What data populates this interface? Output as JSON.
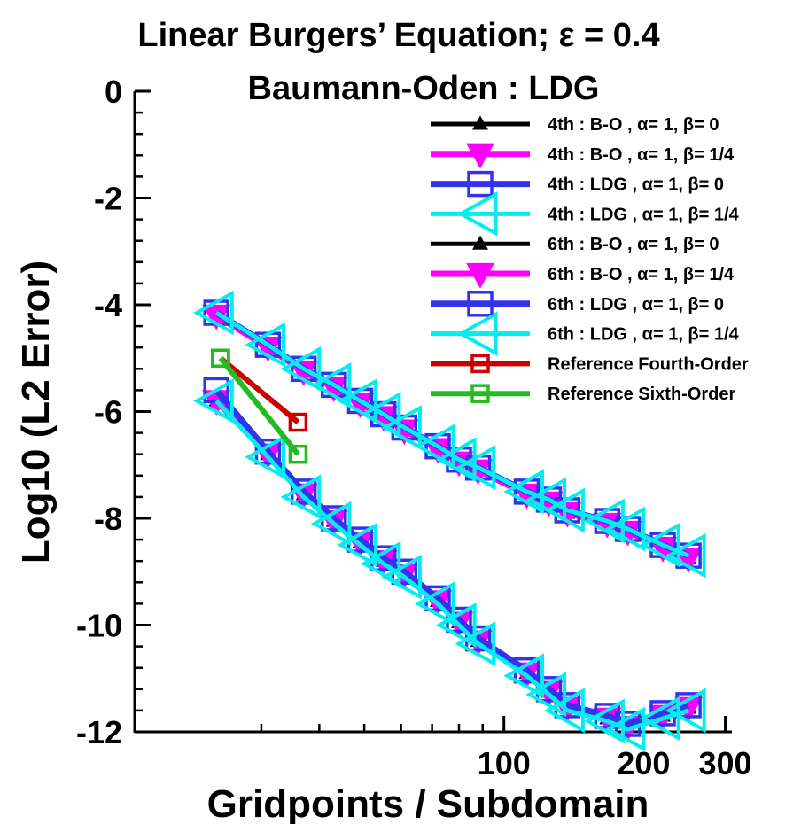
{
  "chart_data": {
    "type": "line",
    "title": "Linear Burgers’ Equation;  ε = 0.4",
    "subtitle": "Baumann-Oden : LDG",
    "xlabel": "Gridpoints / Subdomain",
    "ylabel": "Log10 (L2 Error)",
    "x_scale": "log",
    "xlim": [
      16,
      310
    ],
    "ylim": [
      -12,
      0
    ],
    "x_ticks": [
      {
        "value": 100,
        "label": "100"
      },
      {
        "value": 200,
        "label": "200"
      },
      {
        "value": 300,
        "label": "300"
      }
    ],
    "x_minor_ticks": [
      30,
      40,
      50,
      60,
      70,
      80,
      90
    ],
    "y_ticks": [
      {
        "value": 0,
        "label": "0"
      },
      {
        "value": -2,
        "label": "-2"
      },
      {
        "value": -4,
        "label": "-4"
      },
      {
        "value": -6,
        "label": "-6"
      },
      {
        "value": -8,
        "label": "-8"
      },
      {
        "value": -10,
        "label": "-10"
      },
      {
        "value": -12,
        "label": "-12"
      }
    ],
    "legend_position": "top-right",
    "series": [
      {
        "name": "4th : B-O , α= 1,  β= 0",
        "color": "#000000",
        "marker": "triangle-up",
        "marker_size": 6,
        "line_width": 5,
        "x": [
          24,
          31,
          37,
          43,
          49,
          55,
          61,
          72,
          80,
          88,
          112,
          125,
          137,
          167,
          185,
          220,
          250
        ],
        "y": [
          -4.2,
          -4.8,
          -5.25,
          -5.55,
          -5.85,
          -6.1,
          -6.35,
          -6.7,
          -6.95,
          -7.1,
          -7.55,
          -7.7,
          -7.9,
          -8.1,
          -8.25,
          -8.55,
          -8.75
        ]
      },
      {
        "name": "4th : B-O , α= 1,  β= 1/4",
        "color": "#ff00ff",
        "marker": "triangle-down",
        "marker_size": 13,
        "line_width": 7,
        "x": [
          24,
          31,
          37,
          43,
          49,
          55,
          61,
          72,
          80,
          88,
          112,
          125,
          137,
          167,
          185,
          220,
          250
        ],
        "y": [
          -4.2,
          -4.8,
          -5.25,
          -5.55,
          -5.85,
          -6.1,
          -6.35,
          -6.7,
          -6.95,
          -7.1,
          -7.55,
          -7.7,
          -7.9,
          -8.1,
          -8.25,
          -8.55,
          -8.75
        ]
      },
      {
        "name": "4th : LDG , α= 1,  β= 0",
        "color": "#3333ee",
        "marker": "square",
        "marker_size": 13,
        "line_width": 7,
        "x": [
          24,
          31,
          37,
          43,
          49,
          55,
          61,
          72,
          80,
          88,
          112,
          125,
          137,
          167,
          185,
          220,
          250
        ],
        "y": [
          -4.15,
          -4.75,
          -5.2,
          -5.5,
          -5.8,
          -6.05,
          -6.3,
          -6.65,
          -6.9,
          -7.05,
          -7.5,
          -7.65,
          -7.85,
          -8.05,
          -8.2,
          -8.5,
          -8.7
        ]
      },
      {
        "name": "4th : LDG , α= 1,  β= 1/4",
        "color": "#00eeee",
        "marker": "triangle-left",
        "marker_size": 22,
        "line_width": 5,
        "x": [
          24,
          31,
          37,
          43,
          49,
          55,
          61,
          72,
          80,
          88,
          112,
          125,
          137,
          167,
          185,
          220,
          250
        ],
        "y": [
          -4.15,
          -4.75,
          -5.2,
          -5.5,
          -5.8,
          -6.05,
          -6.3,
          -6.65,
          -6.9,
          -7.05,
          -7.5,
          -7.65,
          -7.85,
          -8.05,
          -8.2,
          -8.5,
          -8.7
        ]
      },
      {
        "name": "6th : B-O , α= 1,  β= 0",
        "color": "#000000",
        "marker": "triangle-up",
        "marker_size": 6,
        "line_width": 5,
        "x": [
          24,
          31,
          37,
          43,
          49,
          55,
          61,
          72,
          80,
          88,
          112,
          125,
          137,
          167,
          185,
          220,
          250
        ],
        "y": [
          -5.8,
          -6.8,
          -7.55,
          -8.05,
          -8.45,
          -8.8,
          -9.05,
          -9.55,
          -9.95,
          -10.3,
          -10.9,
          -11.25,
          -11.55,
          -11.75,
          -11.9,
          -11.7,
          -11.55
        ]
      },
      {
        "name": "6th : B-O , α= 1,  β= 1/4",
        "color": "#ff00ff",
        "marker": "triangle-down",
        "marker_size": 13,
        "line_width": 7,
        "x": [
          24,
          31,
          37,
          43,
          49,
          55,
          61,
          72,
          80,
          88,
          112,
          125,
          137,
          167,
          185,
          220,
          250
        ],
        "y": [
          -5.8,
          -6.8,
          -7.55,
          -8.05,
          -8.45,
          -8.8,
          -9.05,
          -9.55,
          -9.95,
          -10.3,
          -10.9,
          -11.25,
          -11.55,
          -11.75,
          -11.9,
          -11.7,
          -11.55
        ]
      },
      {
        "name": "6th : LDG , α= 1,  β= 0",
        "color": "#3333ee",
        "marker": "square",
        "marker_size": 13,
        "line_width": 7,
        "x": [
          24,
          31,
          37,
          43,
          49,
          55,
          61,
          72,
          80,
          88,
          112,
          125,
          137,
          167,
          185,
          220,
          250
        ],
        "y": [
          -5.6,
          -6.75,
          -7.5,
          -8.0,
          -8.4,
          -8.75,
          -9.0,
          -9.5,
          -9.9,
          -10.25,
          -10.85,
          -11.2,
          -11.5,
          -11.7,
          -11.85,
          -11.65,
          -11.5
        ]
      },
      {
        "name": "6th : LDG , α= 1,  β= 1/4",
        "color": "#00eeee",
        "marker": "triangle-left",
        "marker_size": 22,
        "line_width": 5,
        "x": [
          24,
          31,
          37,
          43,
          49,
          55,
          61,
          72,
          80,
          88,
          112,
          125,
          137,
          167,
          185,
          220,
          250
        ],
        "y": [
          -5.8,
          -6.85,
          -7.6,
          -8.1,
          -8.5,
          -8.85,
          -9.1,
          -9.6,
          -10.0,
          -10.35,
          -10.95,
          -11.3,
          -11.6,
          -11.8,
          -11.95,
          -11.75,
          -11.6
        ]
      },
      {
        "name": "Reference Fourth-Order",
        "color": "#cc0000",
        "marker": "square",
        "marker_size": 9,
        "line_width": 6,
        "x": [
          24.5,
          36
        ],
        "y": [
          -5.0,
          -6.2
        ]
      },
      {
        "name": "Reference Sixth-Order",
        "color": "#22bb22",
        "marker": "square",
        "marker_size": 9,
        "line_width": 6,
        "x": [
          24.5,
          36
        ],
        "y": [
          -5.0,
          -6.8
        ]
      }
    ]
  }
}
